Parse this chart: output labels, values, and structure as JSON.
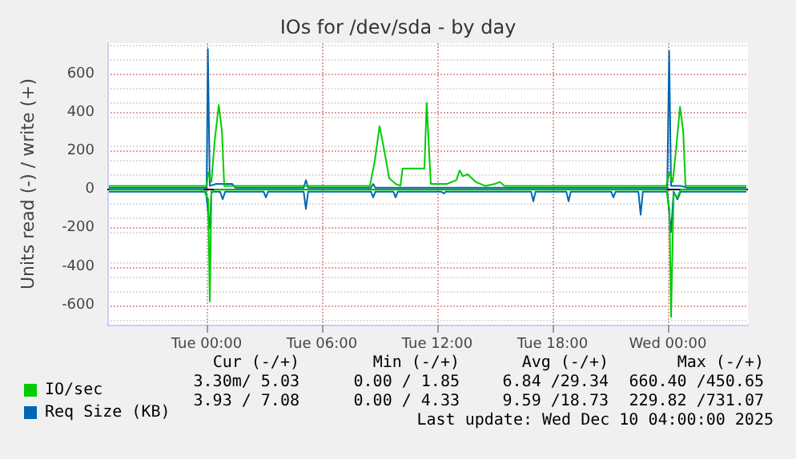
{
  "chart_data": {
    "type": "line",
    "title": "IOs for /dev/sda - by day",
    "ylabel": "Units read (-) / write (+)",
    "xlim": [
      "2025-12-08T18:50",
      "2025-12-10T04:10"
    ],
    "xticks": [
      {
        "value": "2025-12-09T00:00",
        "label": "Tue 00:00"
      },
      {
        "value": "2025-12-09T06:00",
        "label": "Tue 06:00"
      },
      {
        "value": "2025-12-09T12:00",
        "label": "Tue 12:00"
      },
      {
        "value": "2025-12-09T18:00",
        "label": "Tue 18:00"
      },
      {
        "value": "2025-12-10T00:00",
        "label": "Wed 00:00"
      }
    ],
    "ylim": [
      -700,
      760
    ],
    "yticks": [
      -600,
      -400,
      -200,
      0,
      200,
      400,
      600
    ],
    "grid": true,
    "legend": "bottom left",
    "marker": "none",
    "line_style": "solid",
    "ref_lines": [
      {
        "axis": "y",
        "value": 0,
        "color": "#000000"
      }
    ],
    "annotations": [
      "Cur (-/+)",
      "Min (-/+)",
      "Avg (-/+)",
      "Max (-/+)",
      "3.30m/ 5.03",
      "0.00 / 1.85",
      "6.84 /29.34",
      "660.40 /450.65",
      "3.93 / 7.08",
      "0.00 / 4.33",
      "9.59 /18.73",
      "229.82 /731.07",
      "Last update: Wed Dec 10 04:00:00 2025"
    ],
    "series": [
      {
        "color": "#00cc00",
        "x": [
          "2025-12-08T18:55",
          "2025-12-08T23:50",
          "2025-12-09T00:05",
          "2025-12-09T00:10",
          "2025-12-09T00:15",
          "2025-12-09T00:25",
          "2025-12-09T23:55",
          "2025-12-10T00:05",
          "2025-12-10T00:10",
          "2025-12-10T00:18",
          "2025-12-10T00:30",
          "2025-12-10T00:40",
          "2025-12-10T04:05"
        ],
        "values": [
          0,
          0,
          -50,
          -580,
          -20,
          0,
          0,
          -100,
          -660,
          -20,
          -40,
          0,
          0
        ]
      },
      {
        "name": "IO/sec",
        "color": "#00cc00",
        "x": [
          "2025-12-08T18:55",
          "2025-12-08T20:00",
          "2025-12-08T21:00",
          "2025-12-08T22:00",
          "2025-12-08T23:00",
          "2025-12-08T23:50",
          "2025-12-09T00:00",
          "2025-12-09T00:05",
          "2025-12-09T00:15",
          "2025-12-09T00:25",
          "2025-12-09T00:38",
          "2025-12-09T00:48",
          "2025-12-09T00:55",
          "2025-12-09T01:10",
          "2025-12-09T02:00",
          "2025-12-09T04:00",
          "2025-12-09T06:00",
          "2025-12-09T08:00",
          "2025-12-09T08:30",
          "2025-12-09T08:45",
          "2025-12-09T09:00",
          "2025-12-09T09:15",
          "2025-12-09T09:30",
          "2025-12-09T09:50",
          "2025-12-09T10:05",
          "2025-12-09T10:12",
          "2025-12-09T11:20",
          "2025-12-09T11:27",
          "2025-12-09T11:40",
          "2025-12-09T12:30",
          "2025-12-09T13:00",
          "2025-12-09T13:10",
          "2025-12-09T13:20",
          "2025-12-09T13:35",
          "2025-12-09T14:00",
          "2025-12-09T14:30",
          "2025-12-09T15:00",
          "2025-12-09T15:15",
          "2025-12-09T15:30",
          "2025-12-09T16:00",
          "2025-12-09T18:00",
          "2025-12-09T20:00",
          "2025-12-09T22:00",
          "2025-12-09T23:55",
          "2025-12-10T00:05",
          "2025-12-10T00:15",
          "2025-12-10T00:25",
          "2025-12-10T00:38",
          "2025-12-10T00:48",
          "2025-12-10T00:55",
          "2025-12-10T01:10",
          "2025-12-10T02:00",
          "2025-12-10T03:00",
          "2025-12-10T04:05"
        ],
        "values": [
          20,
          20,
          20,
          20,
          20,
          20,
          20,
          90,
          40,
          250,
          440,
          300,
          20,
          20,
          20,
          20,
          20,
          20,
          20,
          150,
          330,
          200,
          60,
          30,
          20,
          110,
          110,
          450,
          30,
          30,
          50,
          100,
          70,
          80,
          40,
          20,
          30,
          40,
          20,
          20,
          20,
          20,
          20,
          20,
          90,
          40,
          200,
          430,
          300,
          20,
          20,
          20,
          20,
          20
        ]
      },
      {
        "color": "#0066b3",
        "x": [
          "2025-12-08T18:55",
          "2025-12-08T23:58",
          "2025-12-09T00:04",
          "2025-12-09T00:10",
          "2025-12-09T00:15",
          "2025-12-09T00:42",
          "2025-12-09T00:50",
          "2025-12-09T00:58",
          "2025-12-09T02:58",
          "2025-12-09T03:05",
          "2025-12-09T03:12",
          "2025-12-09T05:03",
          "2025-12-09T05:10",
          "2025-12-09T05:17",
          "2025-12-09T08:33",
          "2025-12-09T08:40",
          "2025-12-09T08:47",
          "2025-12-09T09:43",
          "2025-12-09T09:50",
          "2025-12-09T09:57",
          "2025-12-09T12:13",
          "2025-12-09T12:20",
          "2025-12-09T12:27",
          "2025-12-09T16:53",
          "2025-12-09T17:00",
          "2025-12-09T17:07",
          "2025-12-09T18:43",
          "2025-12-09T18:50",
          "2025-12-09T18:57",
          "2025-12-09T21:03",
          "2025-12-09T21:10",
          "2025-12-09T21:17",
          "2025-12-09T22:28",
          "2025-12-09T22:35",
          "2025-12-09T22:42",
          "2025-12-09T23:58",
          "2025-12-10T00:04",
          "2025-12-10T00:10",
          "2025-12-10T00:18",
          "2025-12-10T00:30",
          "2025-12-10T00:40",
          "2025-12-10T04:05"
        ],
        "values": [
          -10,
          -10,
          -110,
          -200,
          -10,
          -10,
          -50,
          -10,
          -10,
          -40,
          -10,
          -10,
          -100,
          -10,
          -10,
          -40,
          -10,
          -10,
          -40,
          -10,
          -10,
          -20,
          -10,
          -10,
          -60,
          -10,
          -10,
          -60,
          -10,
          -10,
          -40,
          -10,
          -10,
          -130,
          -10,
          -10,
          -120,
          -220,
          -10,
          -50,
          -10,
          -10
        ]
      },
      {
        "name": "Req Size (KB)",
        "color": "#0066b3",
        "x": [
          "2025-12-08T18:55",
          "2025-12-09T00:00",
          "2025-12-09T00:04",
          "2025-12-09T00:10",
          "2025-12-09T00:30",
          "2025-12-09T01:20",
          "2025-12-09T01:30",
          "2025-12-09T05:03",
          "2025-12-09T05:10",
          "2025-12-09T05:17",
          "2025-12-09T08:33",
          "2025-12-09T08:40",
          "2025-12-09T08:47",
          "2025-12-09T23:58",
          "2025-12-10T00:04",
          "2025-12-10T00:10",
          "2025-12-10T00:40",
          "2025-12-10T01:00",
          "2025-12-10T04:05"
        ],
        "values": [
          10,
          10,
          730,
          20,
          30,
          30,
          10,
          10,
          50,
          10,
          10,
          30,
          10,
          10,
          720,
          20,
          20,
          10,
          10
        ]
      }
    ]
  }
}
